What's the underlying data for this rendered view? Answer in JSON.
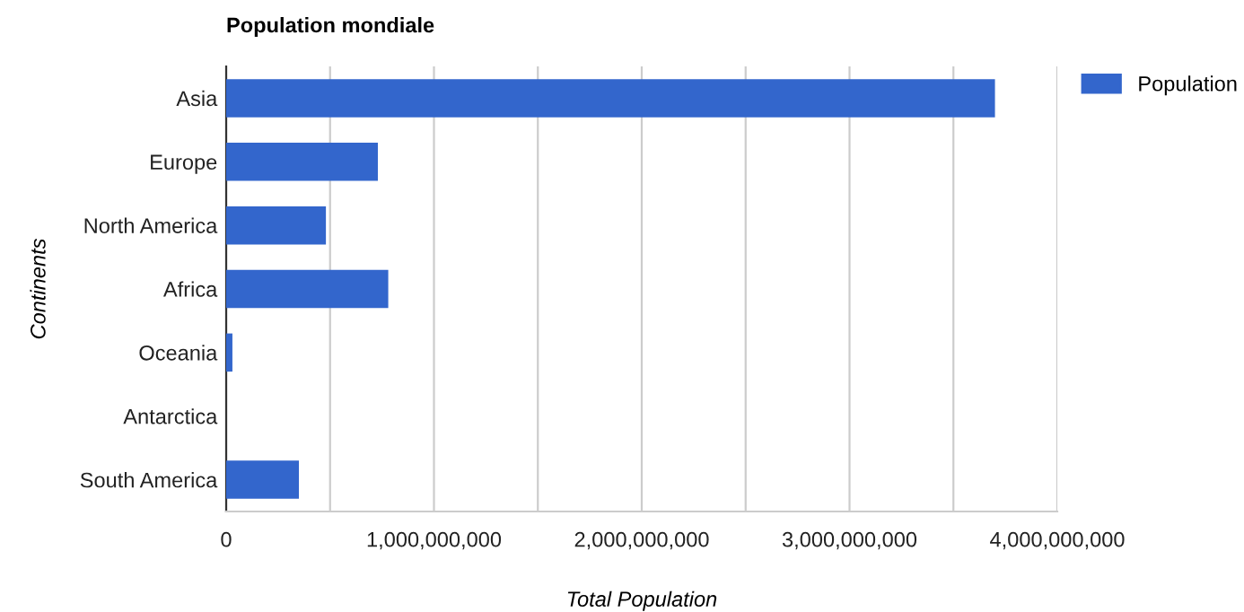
{
  "chart_data": {
    "type": "bar",
    "orientation": "horizontal",
    "title": "Population mondiale",
    "xlabel": "Total Population",
    "ylabel": "Continents",
    "categories": [
      "Asia",
      "Europe",
      "North America",
      "Africa",
      "Oceania",
      "Antarctica",
      "South America"
    ],
    "series": [
      {
        "name": "Population",
        "color": "#3366cc",
        "values": [
          3700000000,
          730000000,
          480000000,
          780000000,
          30000000,
          0,
          350000000
        ]
      }
    ],
    "xlim": [
      0,
      4000000000
    ],
    "xticks": [
      0,
      {
        "value": 500000000,
        "label": null
      },
      {
        "value": 1000000000,
        "label": "1,000,000,000"
      },
      {
        "value": 1500000000,
        "label": null
      },
      {
        "value": 2000000000,
        "label": "2,000,000,000"
      },
      {
        "value": 2500000000,
        "label": null
      },
      {
        "value": 3000000000,
        "label": "3,000,000,000"
      },
      {
        "value": 3500000000,
        "label": null
      },
      {
        "value": 4000000000,
        "label": "4,000,000,000"
      }
    ],
    "grid": "x",
    "legend": "top right"
  }
}
